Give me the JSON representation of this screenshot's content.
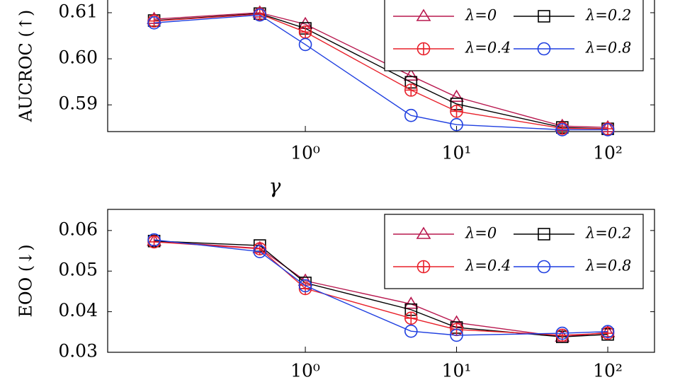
{
  "chart_data": [
    {
      "type": "line",
      "ylabel": "AUCROC (↑)",
      "xlabel": "γ",
      "xscale": "log",
      "legend": "upper right",
      "x": [
        0.1,
        0.5,
        1,
        5,
        10,
        50,
        100
      ],
      "xlim": [
        0.0493,
        203.7
      ],
      "xticks": [
        {
          "value": 1,
          "label": "10⁰"
        },
        {
          "value": 10,
          "label": "10¹"
        },
        {
          "value": 100,
          "label": "10²"
        }
      ],
      "ylim": [
        0.5842,
        0.6146
      ],
      "yticks": [
        0.59,
        {
          "value": 0.6,
          "label": "0.60"
        },
        0.61
      ],
      "series": [
        {
          "name": "λ=0",
          "color": "#b8184f",
          "marker": "triangle",
          "values": [
            0.6086,
            0.61,
            0.6075,
            0.5963,
            0.5917,
            0.5854,
            0.5851
          ]
        },
        {
          "name": "λ=0.2",
          "color": "#000000",
          "marker": "square",
          "values": [
            0.6083,
            0.6098,
            0.6066,
            0.5949,
            0.5902,
            0.5851,
            0.5848
          ]
        },
        {
          "name": "λ=0.4",
          "color": "#e8202a",
          "marker": "oplus",
          "values": [
            0.6082,
            0.6097,
            0.6058,
            0.5932,
            0.5886,
            0.5849,
            0.5848
          ]
        },
        {
          "name": "λ=0.8",
          "color": "#1f3fe0",
          "marker": "circle",
          "values": [
            0.6078,
            0.6095,
            0.6031,
            0.5877,
            0.5857,
            0.5846,
            0.5846
          ]
        }
      ]
    },
    {
      "type": "line",
      "ylabel": "EOO (↓)",
      "xscale": "log",
      "legend": "upper right",
      "x": [
        0.1,
        0.5,
        1,
        5,
        10,
        50,
        100
      ],
      "xlim": [
        0.0493,
        203.7
      ],
      "xticks": [
        {
          "value": 1,
          "label": "10⁰"
        },
        {
          "value": 10,
          "label": "10¹"
        },
        {
          "value": 100,
          "label": "10²"
        }
      ],
      "ylim": [
        0.03,
        0.0652
      ],
      "yticks": [
        0.03,
        0.04,
        0.05,
        0.06
      ],
      "series": [
        {
          "name": "λ=0",
          "color": "#b8184f",
          "marker": "triangle",
          "values": [
            0.0574,
            0.0556,
            0.0476,
            0.0419,
            0.0373,
            0.0338,
            0.0349
          ]
        },
        {
          "name": "λ=0.2",
          "color": "#000000",
          "marker": "square",
          "values": [
            0.0574,
            0.0563,
            0.0471,
            0.0405,
            0.0361,
            0.0338,
            0.0344
          ]
        },
        {
          "name": "λ=0.4",
          "color": "#e8202a",
          "marker": "oplus",
          "values": [
            0.0572,
            0.0555,
            0.0457,
            0.0384,
            0.0356,
            0.0342,
            0.0347
          ]
        },
        {
          "name": "λ=0.8",
          "color": "#1f3fe0",
          "marker": "circle",
          "values": [
            0.0577,
            0.0548,
            0.0464,
            0.0352,
            0.0342,
            0.0347,
            0.0351
          ]
        }
      ]
    }
  ]
}
